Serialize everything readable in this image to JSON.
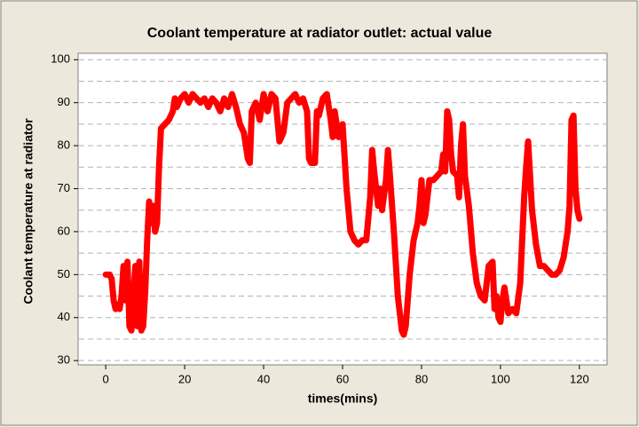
{
  "chart_data": {
    "type": "line",
    "title": "Coolant temperature at radiator outlet: actual value",
    "x_label": "times(mins)",
    "y_label": "Coolant temperature at radiator",
    "color": "#ff0000",
    "grid": true,
    "xlim": [
      -7,
      127
    ],
    "xticks": [
      0,
      20,
      40,
      60,
      80,
      100,
      120
    ],
    "ylim": [
      29,
      101.5
    ],
    "yticks": [
      30,
      40,
      50,
      60,
      70,
      80,
      90,
      100
    ],
    "y_minor_ticks": [
      35,
      45,
      55,
      65,
      75,
      85,
      95
    ],
    "x": [
      0,
      1,
      1.5,
      2,
      2.5,
      3,
      3.5,
      4,
      4.5,
      5,
      5.5,
      6,
      6.5,
      7,
      7.5,
      8,
      8.5,
      9,
      9.5,
      10,
      10.5,
      11,
      11.5,
      12,
      12.5,
      13,
      13.5,
      14,
      15,
      16,
      17,
      17.5,
      18,
      19,
      20,
      21,
      22,
      23,
      24,
      25,
      26,
      27,
      28,
      29,
      30,
      31,
      32,
      33,
      34,
      35,
      36,
      36.5,
      37,
      38,
      39,
      40,
      41,
      42,
      43,
      44,
      45,
      46,
      47,
      48,
      49,
      50,
      51,
      51.5,
      52,
      53,
      53.5,
      54,
      55,
      56,
      57,
      57.5,
      58,
      59,
      60,
      61,
      62,
      63,
      64,
      65,
      66,
      67,
      67.5,
      68,
      69,
      69.5,
      70,
      71,
      71.5,
      72,
      73,
      74,
      75,
      75.5,
      76,
      77,
      78,
      79,
      79.5,
      80,
      80.5,
      81,
      82,
      83,
      84,
      85,
      85.5,
      86,
      86.5,
      87,
      87.5,
      88,
      89,
      89.5,
      90,
      90.5,
      91,
      92,
      93,
      94,
      95,
      96,
      96.5,
      97,
      98,
      98.5,
      99,
      99.5,
      100,
      100.5,
      101,
      102,
      103,
      104,
      105,
      106,
      106.5,
      107,
      108,
      109,
      110,
      111,
      112,
      113,
      114,
      115,
      116,
      117,
      117.5,
      118,
      118.5,
      119,
      119.5,
      120
    ],
    "values": [
      50,
      50,
      49,
      44,
      42,
      43,
      42,
      45,
      52,
      44,
      53,
      38,
      37,
      45,
      52,
      38,
      53,
      37,
      38,
      46,
      58,
      67,
      62,
      66,
      60,
      62,
      75,
      84,
      85,
      86,
      88,
      91,
      89,
      91,
      92,
      90,
      92,
      91,
      90,
      91,
      89,
      91,
      90,
      88,
      91,
      89,
      92,
      89,
      85,
      83,
      77,
      76,
      88,
      90,
      86,
      92,
      88,
      92,
      91,
      81,
      83,
      90,
      91,
      92,
      90,
      91,
      88,
      77,
      76,
      76,
      88,
      87,
      91,
      92,
      86,
      82,
      88,
      82,
      85,
      70,
      60,
      58,
      57,
      58,
      58,
      68,
      79,
      74,
      66,
      70,
      65,
      72,
      79,
      73,
      60,
      45,
      37,
      36,
      38,
      50,
      58,
      62,
      66,
      72,
      62,
      64,
      72,
      72,
      73,
      74,
      78,
      74,
      88,
      86,
      78,
      74,
      73,
      68,
      80,
      85,
      73,
      66,
      55,
      48,
      45,
      44,
      48,
      52,
      53,
      42,
      45,
      40,
      39,
      44,
      47,
      41,
      42,
      41,
      48,
      68,
      75,
      81,
      65,
      57,
      52,
      52,
      51,
      50,
      50,
      51,
      54,
      60,
      66,
      86,
      87,
      70,
      65,
      63
    ]
  }
}
